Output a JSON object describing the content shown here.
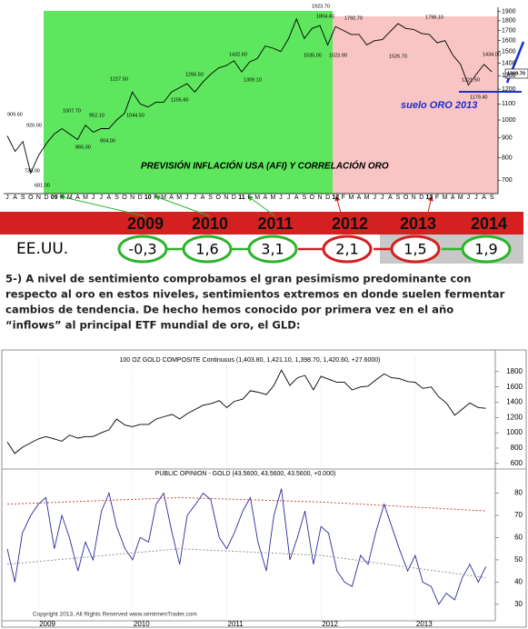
{
  "chart_data": [
    {
      "type": "line",
      "title": "PREVISIÓN INFLACIÓN USA (AFI) Y CORRELACIÓN ORO",
      "note": "suelo ORO 2013",
      "last_price_label": "1369.70",
      "categories": [
        "J",
        "A",
        "S",
        "O",
        "N",
        "D",
        "09",
        "F",
        "M",
        "A",
        "M",
        "J",
        "J",
        "A",
        "S",
        "O",
        "N",
        "D",
        "10",
        "F",
        "M",
        "A",
        "M",
        "J",
        "J",
        "A",
        "S",
        "O",
        "N",
        "D",
        "11",
        "F",
        "M",
        "A",
        "M",
        "J",
        "J",
        "A",
        "S",
        "O",
        "N",
        "D",
        "12",
        "F",
        "M",
        "A",
        "M",
        "J",
        "J",
        "A",
        "S",
        "O",
        "N",
        "D",
        "13",
        "F",
        "M",
        "A",
        "M",
        "J",
        "J",
        "A",
        "S"
      ],
      "series": [
        {
          "color": "#000000",
          "values": [
            910,
            830,
            880,
            730,
            810,
            870,
            920,
            950,
            920,
            890,
            970,
            930,
            950,
            950,
            1000,
            1040,
            1180,
            1100,
            1080,
            1110,
            1110,
            1180,
            1210,
            1240,
            1180,
            1250,
            1310,
            1360,
            1380,
            1420,
            1330,
            1410,
            1440,
            1550,
            1530,
            1500,
            1620,
            1820,
            1620,
            1720,
            1750,
            1560,
            1740,
            1700,
            1660,
            1660,
            1560,
            1600,
            1610,
            1690,
            1770,
            1720,
            1710,
            1670,
            1660,
            1580,
            1600,
            1470,
            1390,
            1230,
            1310,
            1390,
            1330
          ]
        }
      ],
      "log": true,
      "ylim": [
        650,
        1950
      ],
      "yticks": [
        700,
        800,
        900,
        1000,
        1100,
        1200,
        1300,
        1400,
        1500,
        1600,
        1700,
        1800,
        1900
      ],
      "annotations": [
        "909.60",
        "926.00",
        "739.00",
        "681.00",
        "1007.70",
        "865.00",
        "952.10",
        "904.00",
        "1227.50",
        "1044.50",
        "1266.50",
        "1155.60",
        "1432.60",
        "1309.10",
        "1923.70",
        "1804.40",
        "1535.00",
        "1523.90",
        "1792.70",
        "1526.70",
        "1798.10",
        "1434.00",
        "1321.50",
        "1179.40"
      ]
    },
    {
      "type": "line",
      "title": "100 OZ GOLD COMPOSITE Continuous (1,403.80, 1,421.10, 1,398.70, 1,420.60, +27.6000)",
      "x": [
        2008.67,
        2008.75,
        2008.83,
        2008.92,
        2009.0,
        2009.08,
        2009.17,
        2009.25,
        2009.33,
        2009.42,
        2009.5,
        2009.58,
        2009.67,
        2009.75,
        2009.83,
        2009.92,
        2010.0,
        2010.08,
        2010.17,
        2010.25,
        2010.33,
        2010.42,
        2010.5,
        2010.58,
        2010.67,
        2010.75,
        2010.83,
        2010.92,
        2011.0,
        2011.08,
        2011.17,
        2011.25,
        2011.33,
        2011.42,
        2011.5,
        2011.58,
        2011.67,
        2011.75,
        2011.83,
        2011.92,
        2012.0,
        2012.08,
        2012.17,
        2012.25,
        2012.33,
        2012.42,
        2012.5,
        2012.58,
        2012.67,
        2012.75,
        2012.83,
        2012.92,
        2013.0,
        2013.08,
        2013.17,
        2013.25,
        2013.33,
        2013.42,
        2013.5,
        2013.58,
        2013.67,
        2013.75
      ],
      "xlim": [
        2008.67,
        2013.85
      ],
      "xticks": [
        2009,
        2010,
        2011,
        2012,
        2013
      ],
      "series": [
        {
          "color": "#000000",
          "values": [
            880,
            730,
            810,
            870,
            920,
            950,
            920,
            890,
            970,
            930,
            950,
            950,
            1000,
            1040,
            1180,
            1100,
            1080,
            1110,
            1110,
            1180,
            1210,
            1240,
            1180,
            1250,
            1310,
            1360,
            1380,
            1420,
            1330,
            1410,
            1440,
            1550,
            1530,
            1500,
            1620,
            1820,
            1620,
            1720,
            1750,
            1560,
            1740,
            1700,
            1660,
            1660,
            1560,
            1600,
            1610,
            1690,
            1770,
            1720,
            1710,
            1670,
            1660,
            1580,
            1600,
            1470,
            1390,
            1230,
            1310,
            1390,
            1330,
            1320
          ]
        }
      ],
      "ylim": [
        550,
        2000
      ],
      "yticks": [
        600,
        800,
        1000,
        1200,
        1400,
        1600,
        1800
      ]
    },
    {
      "type": "line",
      "title": "PUBLIC OPINION - GOLD (43.5600, 43.5600, 43.5600, +0.000)",
      "footer": "Copyright 2013, All Rights Reserved   www.sentimenTrader.com",
      "x": [
        2008.67,
        2008.75,
        2008.83,
        2008.92,
        2009.0,
        2009.08,
        2009.17,
        2009.25,
        2009.33,
        2009.42,
        2009.5,
        2009.58,
        2009.67,
        2009.75,
        2009.83,
        2009.92,
        2010.0,
        2010.08,
        2010.17,
        2010.25,
        2010.33,
        2010.42,
        2010.5,
        2010.58,
        2010.67,
        2010.75,
        2010.83,
        2010.92,
        2011.0,
        2011.08,
        2011.17,
        2011.25,
        2011.33,
        2011.42,
        2011.5,
        2011.58,
        2011.67,
        2011.75,
        2011.83,
        2011.92,
        2012.0,
        2012.08,
        2012.17,
        2012.25,
        2012.33,
        2012.42,
        2012.5,
        2012.58,
        2012.67,
        2012.75,
        2012.83,
        2012.92,
        2013.0,
        2013.08,
        2013.17,
        2013.25,
        2013.33,
        2013.42,
        2013.5,
        2013.58,
        2013.67,
        2013.75
      ],
      "xlim": [
        2008.67,
        2013.85
      ],
      "xticks": [
        2009,
        2010,
        2011,
        2012,
        2013
      ],
      "series": [
        {
          "color": "#2b2b9a",
          "values": [
            55,
            40,
            62,
            70,
            75,
            78,
            55,
            70,
            60,
            45,
            58,
            50,
            72,
            80,
            65,
            55,
            50,
            60,
            58,
            75,
            80,
            62,
            48,
            70,
            75,
            80,
            77,
            60,
            55,
            62,
            72,
            78,
            58,
            45,
            70,
            82,
            50,
            60,
            72,
            48,
            65,
            62,
            45,
            40,
            38,
            52,
            48,
            62,
            75,
            65,
            55,
            45,
            52,
            40,
            38,
            30,
            35,
            32,
            42,
            48,
            40,
            47
          ]
        },
        {
          "color": "#c0392b",
          "dash": true,
          "x": [
            2008.67,
            2010.5,
            2012.0,
            2013.75
          ],
          "values": [
            75,
            78,
            76,
            72
          ]
        },
        {
          "color": "#888888",
          "dash": true,
          "x": [
            2008.67,
            2010.5,
            2012.0,
            2013.75
          ],
          "values": [
            48,
            55,
            52,
            42
          ]
        }
      ],
      "ylim": [
        23,
        90
      ],
      "yticks": [
        30,
        40,
        50,
        60,
        70,
        80
      ]
    }
  ],
  "inflation_table": {
    "years": [
      "2009",
      "2010",
      "2011",
      "2012",
      "2013",
      "2014"
    ],
    "row_label": "EE.UU.",
    "values": [
      "-0,3",
      "1,6",
      "3,1",
      "2,1",
      "1,5",
      "1,9"
    ],
    "colors": [
      "#2cb52c",
      "#2cb52c",
      "#2cb52c",
      "#d42020",
      "#d42020",
      "#2cb52c"
    ]
  },
  "paragraph": [
    "5-) A nivel de sentimiento comprobamos el gran pesimismo predominante con",
    "respecto al oro en estos niveles, sentimientos extremos en donde suelen fermentar",
    "cambios de tendencia. De hecho hemos conocido por primera vez en el año",
    "“inflows” al principal ETF mundial de oro, el GLD:"
  ]
}
